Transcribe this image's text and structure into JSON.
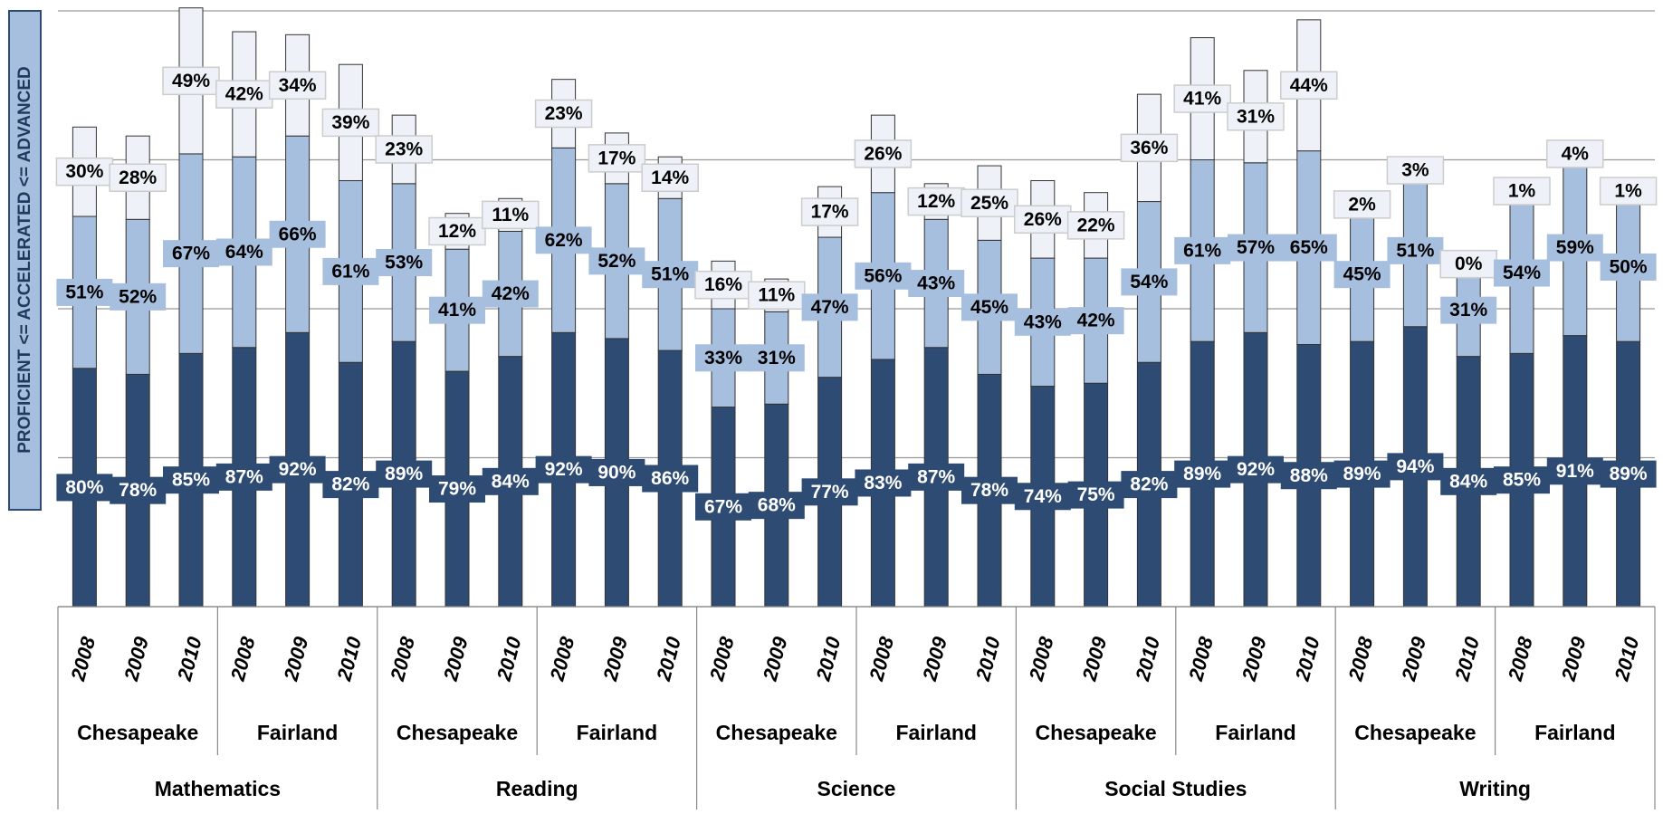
{
  "chart_data": {
    "type": "stacked-bar",
    "y_label": "PROFICIENT <= ACCELERATED <= ADVANCED",
    "categories": [
      "2008",
      "2009",
      "2010",
      "2008",
      "2009",
      "2010",
      "2008",
      "2009",
      "2010",
      "2008",
      "2009",
      "2010",
      "2008",
      "2009",
      "2010",
      "2008",
      "2009",
      "2010",
      "2008",
      "2009",
      "2010",
      "2008",
      "2009",
      "2010",
      "2008",
      "2009",
      "2010",
      "2008",
      "2009",
      "2010"
    ],
    "subjects": [
      {
        "name": "Mathematics",
        "schools": [
          "Chesapeake",
          "Fairland"
        ]
      },
      {
        "name": "Reading",
        "schools": [
          "Chesapeake",
          "Fairland"
        ]
      },
      {
        "name": "Science",
        "schools": [
          "Chesapeake",
          "Fairland"
        ]
      },
      {
        "name": "Social Studies",
        "schools": [
          "Chesapeake",
          "Fairland"
        ]
      },
      {
        "name": "Writing",
        "schools": [
          "Chesapeake",
          "Fairland"
        ]
      }
    ],
    "series": [
      {
        "color": "#2e4b74",
        "label_text_color": "#ffffff",
        "values": [
          80,
          78,
          85,
          87,
          92,
          82,
          89,
          79,
          84,
          92,
          90,
          86,
          67,
          68,
          77,
          83,
          87,
          78,
          74,
          75,
          82,
          89,
          92,
          88,
          89,
          94,
          84,
          85,
          91,
          89
        ],
        "value_labels": [
          "80%",
          "78%",
          "85%",
          "87%",
          "92%",
          "82%",
          "89%",
          "79%",
          "84%",
          "92%",
          "90%",
          "86%",
          "67%",
          "68%",
          "77%",
          "83%",
          "87%",
          "78%",
          "74%",
          "75%",
          "82%",
          "89%",
          "92%",
          "88%",
          "89%",
          "94%",
          "84%",
          "85%",
          "91%",
          "89%"
        ]
      },
      {
        "color": "#a7bfdf",
        "label_text_color": "#000000",
        "values": [
          51,
          52,
          67,
          64,
          66,
          61,
          53,
          41,
          42,
          62,
          52,
          51,
          33,
          31,
          47,
          56,
          43,
          45,
          43,
          42,
          54,
          61,
          57,
          65,
          45,
          51,
          31,
          54,
          59,
          50
        ],
        "value_labels": [
          "51%",
          "52%",
          "67%",
          "64%",
          "66%",
          "61%",
          "53%",
          "41%",
          "42%",
          "62%",
          "52%",
          "51%",
          "33%",
          "31%",
          "47%",
          "56%",
          "43%",
          "45%",
          "43%",
          "42%",
          "54%",
          "61%",
          "57%",
          "65%",
          "45%",
          "51%",
          "31%",
          "54%",
          "59%",
          "50%"
        ]
      },
      {
        "color": "#eef2f8",
        "label_text_color": "#000000",
        "values": [
          30,
          28,
          49,
          42,
          34,
          39,
          23,
          12,
          11,
          23,
          17,
          14,
          16,
          11,
          17,
          26,
          12,
          25,
          26,
          22,
          36,
          41,
          31,
          44,
          2,
          3,
          0,
          1,
          4,
          1
        ],
        "value_labels": [
          "30%",
          "28%",
          "49%",
          "42%",
          "34%",
          "39%",
          "23%",
          "12%",
          "11%",
          "23%",
          "17%",
          "14%",
          "16%",
          "11%",
          "17%",
          "26%",
          "12%",
          "25%",
          "26%",
          "22%",
          "36%",
          "41%",
          "31%",
          "44%",
          "2%",
          "3%",
          "0%",
          "1%",
          "4%",
          "1%"
        ]
      }
    ],
    "ylim": [
      0,
      200
    ],
    "yticks": [
      0,
      50,
      100,
      150,
      200
    ],
    "grid": true
  }
}
